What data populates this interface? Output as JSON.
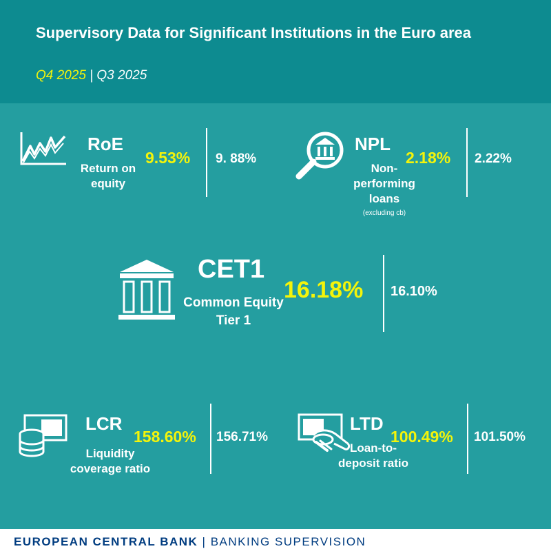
{
  "header": {
    "title": "Supervisory Data for Significant Institutions in the Euro area",
    "quarter_current": "Q4 2025",
    "separator": "|",
    "quarter_previous": "Q3 2025"
  },
  "metrics": {
    "roe": {
      "abbr": "RoE",
      "label": "Return on equity",
      "current": "9.53%",
      "previous": "9. 88%",
      "icon": "line-chart-icon"
    },
    "npl": {
      "abbr": "NPL",
      "label": "Non-performing loans",
      "note": "(excluding cb)",
      "current": "2.18%",
      "previous": "2.22%",
      "icon": "magnifier-bank-icon"
    },
    "cet1": {
      "abbr": "CET1",
      "label": "Common Equity Tier 1",
      "current": "16.18%",
      "previous": "16.10%",
      "icon": "bank-building-icon"
    },
    "lcr": {
      "abbr": "LCR",
      "label": "Liquidity coverage ratio",
      "current": "158.60%",
      "previous": "156.71%",
      "icon": "coins-banknote-icon"
    },
    "ltd": {
      "abbr": "LTD",
      "label": "Loan-to-deposit ratio",
      "current": "100.49%",
      "previous": "101.50%",
      "icon": "hand-banknote-icon"
    }
  },
  "footer": {
    "left": "EUROPEAN CENTRAL BANK",
    "separator": "|",
    "right": "BANKING SUPERVISION"
  },
  "colors": {
    "header_bg": "#0d8b90",
    "panel_bg": "#249ea0",
    "highlight": "#f4f40a",
    "footer_text": "#003c80"
  }
}
